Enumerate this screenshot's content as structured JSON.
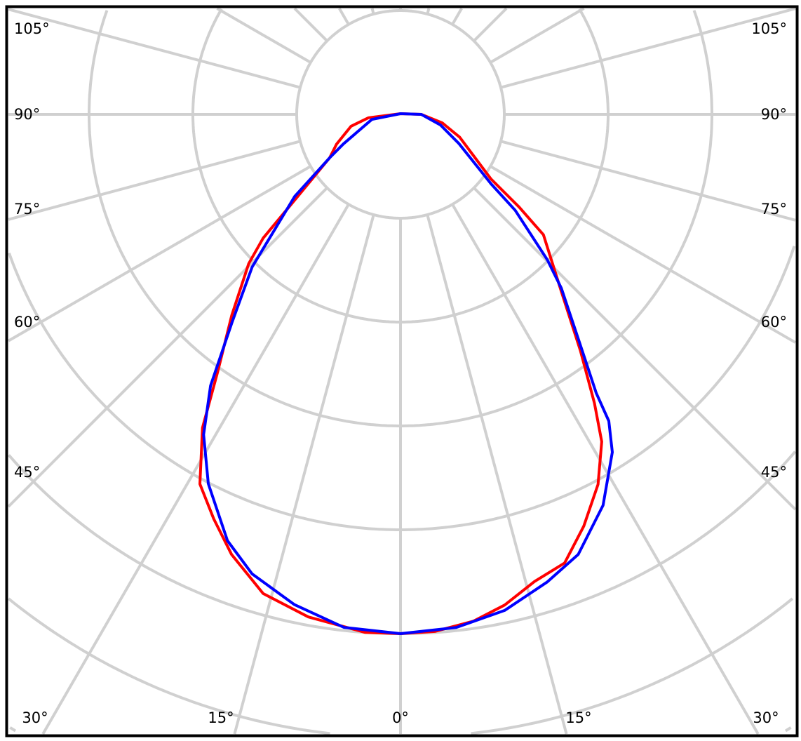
{
  "chart_data": {
    "type": "polar-line",
    "title": "",
    "angle_unit": "degrees",
    "angle_labels_left": [
      "105°",
      "90°",
      "75°",
      "60°",
      "45°"
    ],
    "angle_labels_right": [
      "105°",
      "90°",
      "75°",
      "60°",
      "45°"
    ],
    "angle_labels_bottom": [
      "30°",
      "15°",
      "0°",
      "15°",
      "30°"
    ],
    "radial_grid_rings": 7,
    "angular_grid_step": 15,
    "grid": true,
    "grid_color": "#d0d0d0",
    "series": [
      {
        "color": "#ff0000",
        "points": [
          [
            -84,
            0.31
          ],
          [
            -76.5,
            0.49
          ],
          [
            -65,
            0.68
          ],
          [
            -58.5,
            0.8
          ],
          [
            -51,
            1.31
          ],
          [
            -48,
            1.78
          ],
          [
            -45.5,
            2.05
          ],
          [
            -40,
            2.53
          ],
          [
            -35.4,
            3.04
          ],
          [
            -32.3,
            3.57
          ],
          [
            -28.5,
            4.05
          ],
          [
            -24.8,
            4.29
          ],
          [
            -21,
            4.54
          ],
          [
            -16,
            4.8
          ],
          [
            -10.4,
            4.92
          ],
          [
            -3.9,
            5.0
          ],
          [
            0,
            5.0
          ],
          [
            3.8,
            4.99
          ],
          [
            8.2,
            4.93
          ],
          [
            12,
            4.83
          ],
          [
            16,
            4.68
          ],
          [
            20.1,
            4.6
          ],
          [
            24,
            4.34
          ],
          [
            28.1,
            4.04
          ],
          [
            31.6,
            3.7
          ],
          [
            33.9,
            3.35
          ],
          [
            37.3,
            2.86
          ],
          [
            42.3,
            2.3
          ],
          [
            49.9,
            1.8
          ],
          [
            52,
            1.45
          ],
          [
            54.5,
            1.07
          ],
          [
            69,
            0.61
          ],
          [
            78.5,
            0.41
          ],
          [
            90,
            0.2
          ]
        ]
      },
      {
        "color": "#0000ff",
        "points": [
          [
            -80,
            0.28
          ],
          [
            -62.6,
            0.62
          ],
          [
            -58.5,
            0.8
          ],
          [
            -52.2,
            1.29
          ],
          [
            -44.2,
            2.05
          ],
          [
            -39,
            2.58
          ],
          [
            -35,
            3.19
          ],
          [
            -31.6,
            3.62
          ],
          [
            -27.5,
            4.01
          ],
          [
            -22.1,
            4.43
          ],
          [
            -17.9,
            4.65
          ],
          [
            -12.2,
            4.83
          ],
          [
            -6.3,
            4.97
          ],
          [
            0,
            5.0
          ],
          [
            6.2,
            4.97
          ],
          [
            11.9,
            4.88
          ],
          [
            17.4,
            4.72
          ],
          [
            22,
            4.57
          ],
          [
            27.4,
            4.24
          ],
          [
            32.1,
            3.84
          ],
          [
            34.2,
            3.57
          ],
          [
            35.1,
            3.28
          ],
          [
            38.3,
            2.77
          ],
          [
            42.8,
            2.28
          ],
          [
            45.3,
            1.99
          ],
          [
            50.1,
            1.44
          ],
          [
            52.5,
            1.1
          ],
          [
            63.4,
            0.63
          ],
          [
            75,
            0.4
          ],
          [
            90,
            0.2
          ]
        ]
      }
    ]
  }
}
